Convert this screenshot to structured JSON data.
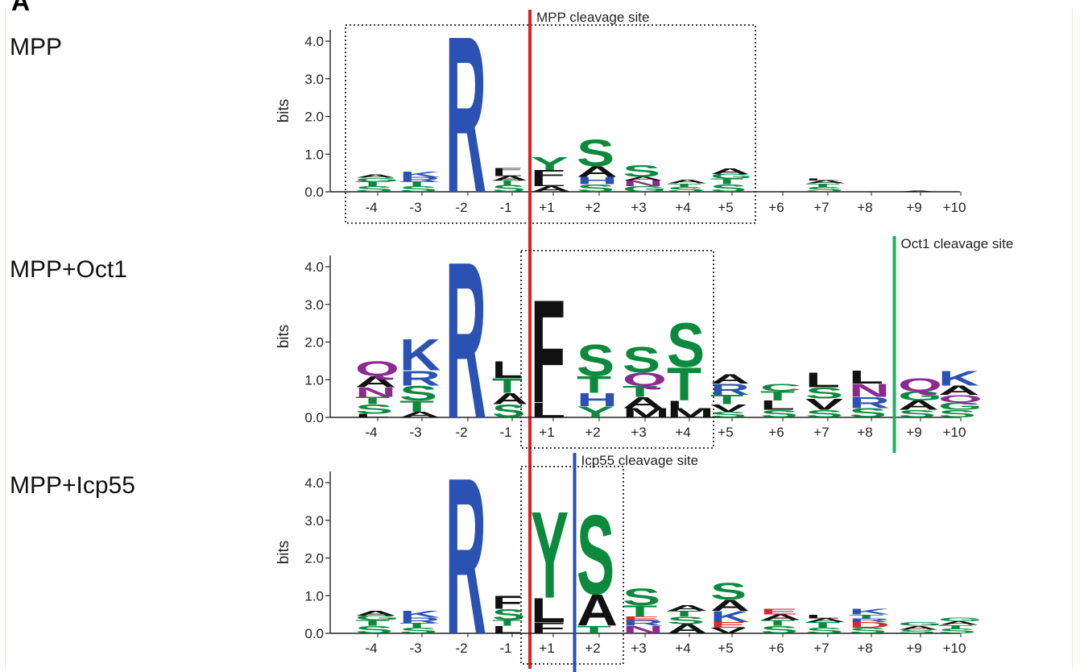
{
  "figure": {
    "panel_letter": "A"
  },
  "colors": {
    "basic": "#2b52b3",
    "polar": "#0b8a3e",
    "acidic": "#d42b2b",
    "hydrophobic": "#111111",
    "amide": "#8b2a8f",
    "mpp_site_line": "#e02020",
    "oct1_site_line": "#17b55d",
    "icp55_site_line": "#2a4fb0"
  },
  "chart_data": [
    {
      "type": "sequence-logo",
      "label": "MPP",
      "ylabel": "bits",
      "ylim": [
        0,
        4.3
      ],
      "yticks": [
        "0.0",
        "1.0",
        "2.0",
        "3.0",
        "4.0"
      ],
      "positions": [
        "-4",
        "-3",
        "-2",
        "-1",
        "+1",
        "+2",
        "+3",
        "+4",
        "+5",
        "+6",
        "+7",
        "+8",
        "+9",
        "+10"
      ],
      "annotation": {
        "text": "MPP cleavage site",
        "between": [
          "-1",
          "+1"
        ]
      },
      "dotted_box": [
        "-4",
        "+5"
      ],
      "stacks": [
        [
          [
            "S",
            0.15
          ],
          [
            "T",
            0.12
          ],
          [
            "G",
            0.1
          ],
          [
            "A",
            0.08
          ]
        ],
        [
          [
            "S",
            0.15
          ],
          [
            "T",
            0.12
          ],
          [
            "R",
            0.12
          ],
          [
            "K",
            0.16
          ]
        ],
        [
          [
            "R",
            4.25
          ]
        ],
        [
          [
            "S",
            0.18
          ],
          [
            "T",
            0.12
          ],
          [
            "A",
            0.12
          ],
          [
            "L",
            0.12
          ],
          [
            "F",
            0.1
          ]
        ],
        [
          [
            "A",
            0.15
          ],
          [
            "L",
            0.18
          ],
          [
            "F",
            0.25
          ],
          [
            "Y",
            0.35
          ]
        ],
        [
          [
            "S",
            0.2
          ],
          [
            "H",
            0.2
          ],
          [
            "A",
            0.28
          ],
          [
            "S",
            0.72
          ]
        ],
        [
          [
            "G",
            0.15
          ],
          [
            "N",
            0.15
          ],
          [
            "A",
            0.1
          ],
          [
            "S",
            0.32
          ]
        ],
        [
          [
            "S",
            0.12
          ],
          [
            "T",
            0.1
          ],
          [
            "A",
            0.1
          ]
        ],
        [
          [
            "S",
            0.2
          ],
          [
            "T",
            0.15
          ],
          [
            "G",
            0.12
          ],
          [
            "A",
            0.15
          ]
        ],
        [],
        [
          [
            "S",
            0.12
          ],
          [
            "T",
            0.1
          ],
          [
            "A",
            0.08
          ],
          [
            "L",
            0.06
          ]
        ],
        [],
        [
          [
            "A",
            0.03
          ]
        ],
        []
      ]
    },
    {
      "type": "sequence-logo",
      "label": "MPP+Oct1",
      "ylabel": "bits",
      "ylim": [
        0,
        4.3
      ],
      "yticks": [
        "0.0",
        "1.0",
        "2.0",
        "3.0",
        "4.0"
      ],
      "positions": [
        "-4",
        "-3",
        "-2",
        "-1",
        "+1",
        "+2",
        "+3",
        "+4",
        "+5",
        "+6",
        "+7",
        "+8",
        "+9",
        "+10"
      ],
      "annotation": {
        "text": "Oct1 cleavage site",
        "between": [
          "+8",
          "+9"
        ]
      },
      "dotted_box": [
        "+1",
        "+4"
      ],
      "stacks": [
        [
          [
            "L",
            0.1
          ],
          [
            "S",
            0.25
          ],
          [
            "T",
            0.2
          ],
          [
            "N",
            0.25
          ],
          [
            "A",
            0.3
          ],
          [
            "Q",
            0.4
          ]
        ],
        [
          [
            "A",
            0.15
          ],
          [
            "T",
            0.3
          ],
          [
            "S",
            0.4
          ],
          [
            "R",
            0.4
          ],
          [
            "K",
            0.85
          ]
        ],
        [
          [
            "R",
            4.25
          ]
        ],
        [
          [
            "S",
            0.35
          ],
          [
            "A",
            0.3
          ],
          [
            "T",
            0.4
          ],
          [
            "L",
            0.45
          ]
        ],
        [
          [
            "L",
            0.4
          ],
          [
            "F",
            2.8
          ]
        ],
        [
          [
            "Y",
            0.3
          ],
          [
            "H",
            0.35
          ],
          [
            "T",
            0.45
          ],
          [
            "S",
            0.85
          ]
        ],
        [
          [
            "M",
            0.25
          ],
          [
            "A",
            0.3
          ],
          [
            "T",
            0.3
          ],
          [
            "Q",
            0.35
          ],
          [
            "S",
            0.7
          ]
        ],
        [
          [
            "M",
            0.25
          ],
          [
            "I",
            0.2
          ],
          [
            "T",
            0.9
          ],
          [
            "S",
            1.2
          ]
        ],
        [
          [
            "S",
            0.15
          ],
          [
            "V",
            0.2
          ],
          [
            "T",
            0.25
          ],
          [
            "R",
            0.3
          ],
          [
            "A",
            0.25
          ]
        ],
        [
          [
            "S",
            0.2
          ],
          [
            "L",
            0.25
          ],
          [
            "T",
            0.25
          ],
          [
            "C",
            0.2
          ]
        ],
        [
          [
            "S",
            0.2
          ],
          [
            "V",
            0.3
          ],
          [
            "S",
            0.3
          ],
          [
            "L",
            0.4
          ]
        ],
        [
          [
            "S",
            0.25
          ],
          [
            "R",
            0.3
          ],
          [
            "N",
            0.35
          ],
          [
            "L",
            0.35
          ]
        ],
        [
          [
            "S",
            0.2
          ],
          [
            "A",
            0.25
          ],
          [
            "G",
            0.25
          ],
          [
            "Q",
            0.35
          ]
        ],
        [
          [
            "S",
            0.2
          ],
          [
            "G",
            0.2
          ],
          [
            "Q",
            0.2
          ],
          [
            "A",
            0.25
          ],
          [
            "K",
            0.4
          ]
        ]
      ]
    },
    {
      "type": "sequence-logo",
      "label": "MPP+Icp55",
      "ylabel": "bits",
      "ylim": [
        0,
        4.3
      ],
      "yticks": [
        "0.0",
        "1.0",
        "2.0",
        "3.0",
        "4.0"
      ],
      "positions": [
        "-4",
        "-3",
        "-2",
        "-1",
        "+1",
        "+2",
        "+3",
        "+4",
        "+5",
        "+6",
        "+7",
        "+8",
        "+9",
        "+10"
      ],
      "annotation": {
        "text": "Icp55 cleavage site",
        "between": [
          "+1",
          "+2"
        ]
      },
      "dotted_box": [
        "+1",
        "+2"
      ],
      "stacks": [
        [
          [
            "S",
            0.2
          ],
          [
            "T",
            0.15
          ],
          [
            "G",
            0.12
          ],
          [
            "A",
            0.12
          ]
        ],
        [
          [
            "S",
            0.15
          ],
          [
            "T",
            0.12
          ],
          [
            "R",
            0.15
          ],
          [
            "K",
            0.18
          ]
        ],
        [
          [
            "R",
            4.25
          ]
        ],
        [
          [
            "L",
            0.2
          ],
          [
            "T",
            0.15
          ],
          [
            "S",
            0.3
          ],
          [
            "F",
            0.35
          ]
        ],
        [
          [
            "F",
            0.3
          ],
          [
            "L",
            0.65
          ],
          [
            "Y",
            2.35
          ]
        ],
        [
          [
            "T",
            0.2
          ],
          [
            "A",
            0.85
          ],
          [
            "S",
            2.15
          ]
        ],
        [
          [
            "N",
            0.2
          ],
          [
            "R",
            0.15
          ],
          [
            "E",
            0.1
          ],
          [
            "T",
            0.3
          ],
          [
            "S",
            0.45
          ]
        ],
        [
          [
            "A",
            0.25
          ],
          [
            "S",
            0.2
          ],
          [
            "T",
            0.15
          ],
          [
            "A",
            0.15
          ]
        ],
        [
          [
            "V",
            0.15
          ],
          [
            "E",
            0.15
          ],
          [
            "K",
            0.3
          ],
          [
            "A",
            0.3
          ],
          [
            "S",
            0.45
          ]
        ],
        [
          [
            "S",
            0.2
          ],
          [
            "T",
            0.15
          ],
          [
            "A",
            0.15
          ],
          [
            "E",
            0.15
          ]
        ],
        [
          [
            "S",
            0.15
          ],
          [
            "T",
            0.15
          ],
          [
            "A",
            0.1
          ],
          [
            "L",
            0.1
          ]
        ],
        [
          [
            "S",
            0.15
          ],
          [
            "D",
            0.15
          ],
          [
            "R",
            0.1
          ],
          [
            "T",
            0.1
          ],
          [
            "K",
            0.15
          ]
        ],
        [
          [
            "S",
            0.1
          ],
          [
            "A",
            0.1
          ],
          [
            "G",
            0.1
          ]
        ],
        [
          [
            "S",
            0.12
          ],
          [
            "T",
            0.1
          ],
          [
            "A",
            0.1
          ],
          [
            "G",
            0.1
          ]
        ]
      ]
    }
  ]
}
